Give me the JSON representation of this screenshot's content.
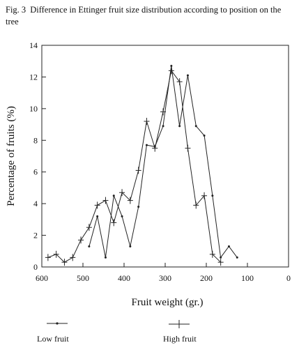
{
  "figure": {
    "label": "Fig. 3",
    "caption": "Difference in Ettinger fruit size distribution according to position on the tree"
  },
  "chart_data": {
    "type": "line",
    "title": "Fig. 3 Difference in Ettinger fruit size distribution according to position on the tree",
    "xlabel": "Fruit weight (gr.)",
    "ylabel": "Percentage of fruits (%)",
    "xlim": [
      600,
      0
    ],
    "ylim": [
      0,
      14
    ],
    "x_reversed": true,
    "x_ticks": [
      600,
      500,
      400,
      300,
      200,
      100,
      0
    ],
    "y_ticks": [
      0,
      2,
      4,
      6,
      8,
      10,
      12,
      14
    ],
    "grid": false,
    "legend_position": "bottom",
    "series": [
      {
        "name": "Low fruit",
        "marker": "dot",
        "points": [
          [
            485,
            1.3
          ],
          [
            465,
            3.2
          ],
          [
            445,
            0.6
          ],
          [
            425,
            4.5
          ],
          [
            405,
            3.2
          ],
          [
            385,
            1.3
          ],
          [
            365,
            3.8
          ],
          [
            345,
            7.7
          ],
          [
            325,
            7.6
          ],
          [
            305,
            8.9
          ],
          [
            285,
            12.7
          ],
          [
            265,
            8.9
          ],
          [
            245,
            12.1
          ],
          [
            225,
            8.9
          ],
          [
            205,
            8.3
          ],
          [
            185,
            4.5
          ],
          [
            165,
            0.6
          ],
          [
            145,
            1.3
          ],
          [
            125,
            0.6
          ]
        ]
      },
      {
        "name": "High fruit",
        "marker": "plus",
        "points": [
          [
            585,
            0.6
          ],
          [
            565,
            0.8
          ],
          [
            545,
            0.3
          ],
          [
            525,
            0.6
          ],
          [
            505,
            1.7
          ],
          [
            485,
            2.5
          ],
          [
            465,
            3.9
          ],
          [
            445,
            4.2
          ],
          [
            425,
            2.8
          ],
          [
            405,
            4.7
          ],
          [
            385,
            4.2
          ],
          [
            365,
            6.1
          ],
          [
            345,
            9.2
          ],
          [
            325,
            7.5
          ],
          [
            305,
            9.8
          ],
          [
            285,
            12.4
          ],
          [
            265,
            11.7
          ],
          [
            245,
            7.5
          ],
          [
            225,
            3.9
          ],
          [
            205,
            4.5
          ],
          [
            185,
            0.8
          ],
          [
            165,
            0.3
          ]
        ]
      }
    ]
  }
}
